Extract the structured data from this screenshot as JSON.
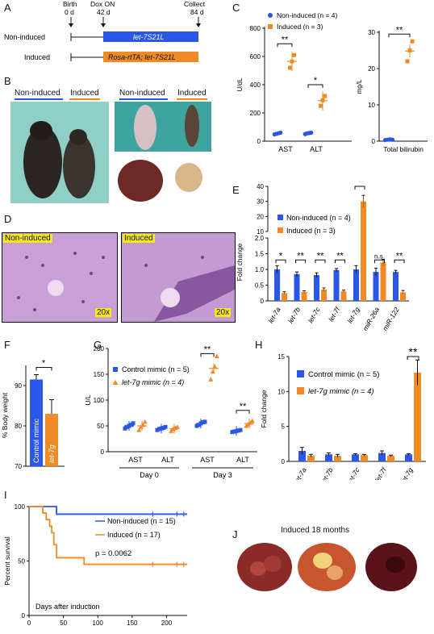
{
  "panelA": {
    "label": "A",
    "timeline": [
      {
        "label": "Birth",
        "sub": "0 d"
      },
      {
        "label": "Dox ON",
        "sub": "42 d"
      },
      {
        "label": "Collect",
        "sub": "84 d"
      }
    ],
    "rows": [
      {
        "group": "Non-induced",
        "construct": "let-7S21L",
        "color": "#2a57e8"
      },
      {
        "group": "Induced",
        "construct": "Rosa-rtTA; let-7S21L",
        "color": "#f08a24"
      }
    ]
  },
  "panelB": {
    "label": "B",
    "non_induced": "Non-induced",
    "induced": "Induced"
  },
  "panelC": {
    "label": "C"
  },
  "panelD": {
    "label": "D",
    "left_tag": "Non-induced",
    "right_tag": "Induced",
    "magnification": "20x"
  },
  "panelE": {
    "label": "E"
  },
  "panelF": {
    "label": "F"
  },
  "panelG": {
    "label": "G"
  },
  "panelH": {
    "label": "H"
  },
  "panelI": {
    "label": "I"
  },
  "panelJ": {
    "label": "J",
    "caption": "Induced 18 months"
  },
  "colors": {
    "blue": "#2a57e8",
    "orange": "#f08a24",
    "purple_stain": "#c9a0d6"
  },
  "chart_data": [
    {
      "id": "C1",
      "type": "scatter",
      "ylabel": "U/dL",
      "ylim": [
        0,
        800
      ],
      "yticks": [
        0,
        200,
        400,
        600,
        800
      ],
      "categories": [
        "AST",
        "ALT"
      ],
      "legend": [
        "Non-induced (n = 4)",
        "Induced (n = 3)"
      ],
      "series": [
        {
          "name": "Non-induced (n = 4)",
          "color": "#2a57e8",
          "values": [
            [
              48,
              52,
              56,
              60
            ],
            [
              50,
              55,
              58,
              60
            ]
          ]
        },
        {
          "name": "Induced (n = 3)",
          "color": "#f08a24",
          "values": [
            [
              520,
              565,
              610
            ],
            [
              250,
              290,
              320
            ]
          ]
        }
      ],
      "significance": [
        "**",
        "*"
      ]
    },
    {
      "id": "C2",
      "type": "scatter",
      "ylabel": "mg/L",
      "ylim": [
        0,
        30
      ],
      "yticks": [
        0,
        10,
        20,
        30
      ],
      "categories": [
        "Total bilirubin"
      ],
      "series": [
        {
          "name": "Non-induced",
          "color": "#2a57e8",
          "values": [
            [
              0.3,
              0.4,
              0.5,
              0.4
            ]
          ]
        },
        {
          "name": "Induced",
          "color": "#f08a24",
          "values": [
            [
              22,
              25,
              27.5
            ]
          ]
        }
      ],
      "significance": [
        "**"
      ]
    },
    {
      "id": "E",
      "type": "bar",
      "ylabel": "Fold change",
      "yticks": [
        "0",
        "0.5",
        "1.0",
        "1.5",
        "2.0",
        "10",
        "20",
        "30",
        "40"
      ],
      "categories": [
        "let-7a",
        "let-7b",
        "let-7c",
        "let-7f",
        "let-7g",
        "miR-26a",
        "miR-122"
      ],
      "series": [
        {
          "name": "Non-induced (n = 4)",
          "color": "#2a57e8",
          "values": [
            1.0,
            0.85,
            0.82,
            0.98,
            1.0,
            0.92,
            0.92
          ],
          "errors": [
            0.12,
            0.07,
            0.07,
            0.05,
            0.12,
            0.12,
            0.05
          ]
        },
        {
          "name": "Induced (n = 3)",
          "color": "#f08a24",
          "values": [
            0.25,
            0.28,
            0.36,
            0.3,
            30,
            1.22,
            0.27
          ],
          "errors": [
            0.04,
            0.04,
            0.05,
            0.04,
            4,
            0.1,
            0.06
          ]
        }
      ],
      "significance": [
        "*",
        "**",
        "**",
        "**",
        "*",
        "n.s.",
        "**"
      ]
    },
    {
      "id": "F",
      "type": "bar",
      "ylabel": "% Body weight",
      "ylim": [
        70,
        95
      ],
      "yticks": [
        70,
        80,
        90
      ],
      "categories": [
        "Control mimic",
        "let-7g"
      ],
      "values": [
        91.5,
        83
      ],
      "errors": [
        1.2,
        3.5
      ],
      "colors": [
        "#2a57e8",
        "#f08a24"
      ],
      "significance": [
        "*"
      ]
    },
    {
      "id": "G",
      "type": "scatter",
      "ylabel": "U/L",
      "ylim": [
        0,
        200
      ],
      "yticks": [
        0,
        50,
        100,
        150,
        200
      ],
      "categories": [
        "AST",
        "ALT",
        "AST",
        "ALT"
      ],
      "group_labels": [
        "Day 0",
        "Day 3"
      ],
      "legend": [
        "Control mimic (n = 5)",
        "let-7g mimic (n = 4)"
      ],
      "series": [
        {
          "name": "Control mimic (n = 5)",
          "color": "#2a57e8",
          "values": [
            [
              45,
              48,
              50,
              52,
              55
            ],
            [
              42,
              44,
              45,
              46,
              48
            ],
            [
              50,
              52,
              55,
              57,
              58
            ],
            [
              38,
              39,
              40,
              41,
              42
            ]
          ]
        },
        {
          "name": "let-7g mimic (n = 4)",
          "color": "#f08a24",
          "values": [
            [
              42,
              48,
              52,
              58
            ],
            [
              40,
              44,
              46,
              48
            ],
            [
              140,
              155,
              165,
              185
            ],
            [
              50,
              53,
              56,
              60
            ]
          ]
        }
      ],
      "significance": [
        "**",
        "**"
      ]
    },
    {
      "id": "H",
      "type": "bar",
      "ylabel": "Fold change",
      "ylim": [
        0,
        15
      ],
      "yticks": [
        0,
        5,
        10,
        15
      ],
      "categories": [
        "let-7a",
        "let-7b",
        "let-7c",
        "let-7f",
        "let-7g"
      ],
      "series": [
        {
          "name": "Control mimic (n = 5)",
          "color": "#2a57e8",
          "values": [
            1.5,
            1.0,
            1.0,
            1.2,
            1.0
          ],
          "errors": [
            0.5,
            0.2,
            0.1,
            0.3,
            0.1
          ]
        },
        {
          "name": "let-7g mimic (n = 4)",
          "color": "#f08a24",
          "values": [
            0.8,
            0.8,
            0.9,
            0.8,
            12.7
          ],
          "errors": [
            0.2,
            0.2,
            0.1,
            0.1,
            1.8
          ]
        }
      ],
      "significance": [
        "",
        "",
        "",
        "",
        "**"
      ]
    },
    {
      "id": "I",
      "type": "line",
      "ylabel": "Percent survival",
      "xlabel": "Days after induction",
      "xlim": [
        0,
        230
      ],
      "ylim": [
        0,
        100
      ],
      "xticks": [
        0,
        50,
        100,
        150,
        200
      ],
      "yticks": [
        0,
        50,
        100
      ],
      "annotation": "p = 0.0062",
      "series": [
        {
          "name": "Non-induced (n = 15)",
          "color": "#2a57e8",
          "x": [
            0,
            40,
            40,
            230
          ],
          "y": [
            100,
            100,
            93,
            93
          ]
        },
        {
          "name": "Induced (n = 17)",
          "color": "#f08a24",
          "x": [
            0,
            20,
            20,
            25,
            25,
            30,
            30,
            33,
            33,
            36,
            36,
            40,
            40,
            80,
            80,
            230
          ],
          "y": [
            100,
            100,
            94,
            94,
            88,
            88,
            82,
            82,
            76,
            76,
            65,
            65,
            53,
            53,
            47,
            47
          ]
        }
      ]
    }
  ]
}
